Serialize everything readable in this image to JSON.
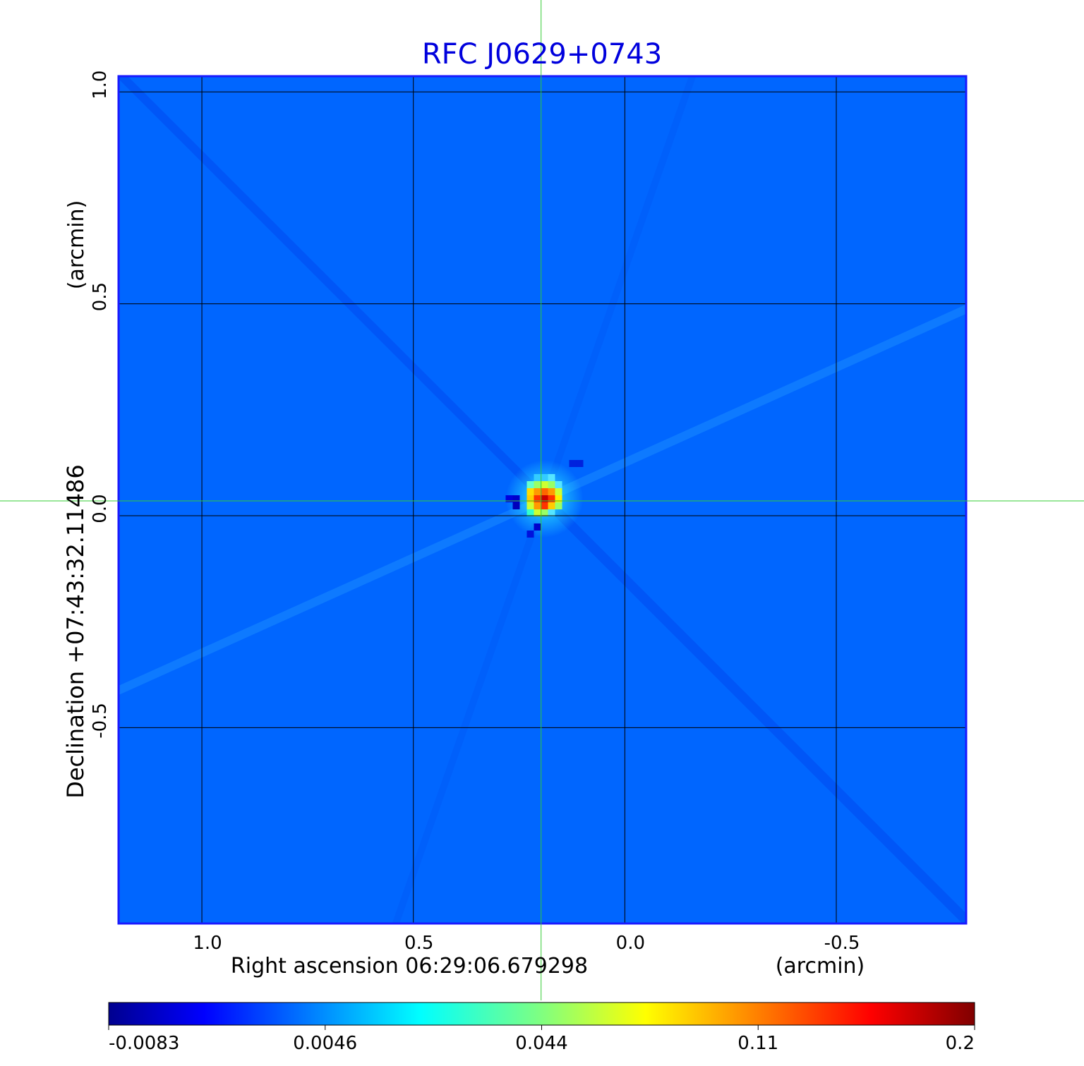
{
  "chart_data": {
    "type": "heatmap",
    "title": "RFC J0629+0743",
    "xlabel": "Right ascension  06:29:06.679298",
    "xunit": "(arcmin)",
    "ylabel": "Declination  +07:43:32.11486",
    "yunit": "(arcmin)",
    "x_ticks": [
      {
        "value": 1.0,
        "label": "1.0"
      },
      {
        "value": 0.5,
        "label": "0.5"
      },
      {
        "value": 0.0,
        "label": "0.0"
      },
      {
        "value": -0.5,
        "label": "-0.5"
      }
    ],
    "y_ticks": [
      {
        "value": 1.0,
        "label": "1.0"
      },
      {
        "value": 0.5,
        "label": "0.5"
      },
      {
        "value": 0.0,
        "label": "0.0"
      },
      {
        "value": -0.5,
        "label": "-0.5"
      }
    ],
    "xlim": [
      1.197,
      -0.807
    ],
    "ylim": [
      -0.962,
      1.037
    ],
    "grid": true,
    "crosshair": {
      "x": 0.198,
      "y": 0.035
    },
    "colorbar": {
      "labels": [
        "-0.0083",
        "0.0046",
        "0.044",
        "0.11",
        "0.2"
      ],
      "colormap": "jet",
      "vmin": -0.0083,
      "vmax": 0.2
    },
    "peak": {
      "x": 0.19,
      "y": 0.04,
      "value": 0.2
    },
    "background_level": 0.0
  },
  "colors": {
    "title": "#0000dd",
    "background": "#0066ff",
    "crosshair": "#33cc33",
    "frame": "#1a1aff",
    "grid": "#000000"
  }
}
